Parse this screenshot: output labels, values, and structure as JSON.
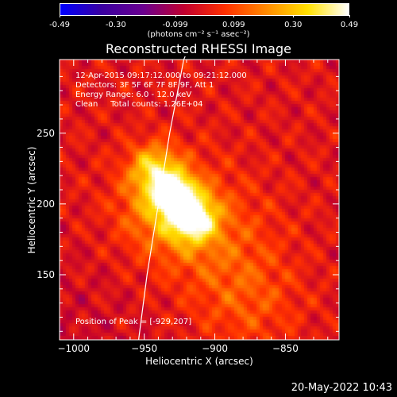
{
  "colorbar": {
    "ticks": [
      "-0.49",
      "-0.30",
      "-0.099",
      "0.099",
      "0.30",
      "0.49"
    ],
    "tick_values": [
      -0.49,
      -0.3,
      -0.099,
      0.099,
      0.3,
      0.49
    ],
    "unit_label": "(photons cm⁻² s⁻¹ asec⁻²)",
    "colors": [
      "#0000ff",
      "#3a00a0",
      "#6a0090",
      "#c00030",
      "#ff3000",
      "#ff8a00",
      "#ffe000",
      "#ffffff"
    ]
  },
  "chart_data": {
    "type": "heatmap",
    "title": "Reconstructed RHESSI Image",
    "xlabel": "Heliocentric X (arcsec)",
    "ylabel": "Heliocentric Y (arcsec)",
    "xlim": [
      -1010,
      -812
    ],
    "ylim": [
      104,
      302
    ],
    "xticks": [
      -1000,
      -950,
      -900,
      -850
    ],
    "xtick_labels": [
      "−1000",
      "−950",
      "−900",
      "−850"
    ],
    "yticks": [
      150,
      200,
      250
    ],
    "ytick_labels": [
      "150",
      "200",
      "250"
    ],
    "annotations": [
      "12-Apr-2015 09:17:12.000 to 09:21:12.000",
      "Detectors: 3F 5F 6F 7F 8F 9F, Att 1",
      "Energy Range: 6.0 - 12.0 keV",
      "Clean     Total counts: 1.26E+04"
    ],
    "peak_label": "Position of Peak = [-929,207]",
    "peak": {
      "x": -929,
      "y": 207
    },
    "sources": [
      {
        "x": -929,
        "y": 207,
        "amp": 0.49,
        "sigma": 9
      },
      {
        "x": -915,
        "y": 190,
        "amp": 0.4,
        "sigma": 11
      },
      {
        "x": -943,
        "y": 225,
        "amp": 0.28,
        "sigma": 12
      },
      {
        "x": -935,
        "y": 198,
        "amp": 0.25,
        "sigma": 22
      },
      {
        "x": -900,
        "y": 175,
        "amp": 0.12,
        "sigma": 30
      },
      {
        "x": -875,
        "y": 130,
        "amp": 0.1,
        "sigma": 25
      }
    ],
    "limb_curve": [
      [
        -954,
        104
      ],
      [
        -948,
        150
      ],
      [
        -940,
        200
      ],
      [
        -932,
        250
      ],
      [
        -922,
        302
      ]
    ]
  },
  "timestamp": "20-May-2022 10:43"
}
